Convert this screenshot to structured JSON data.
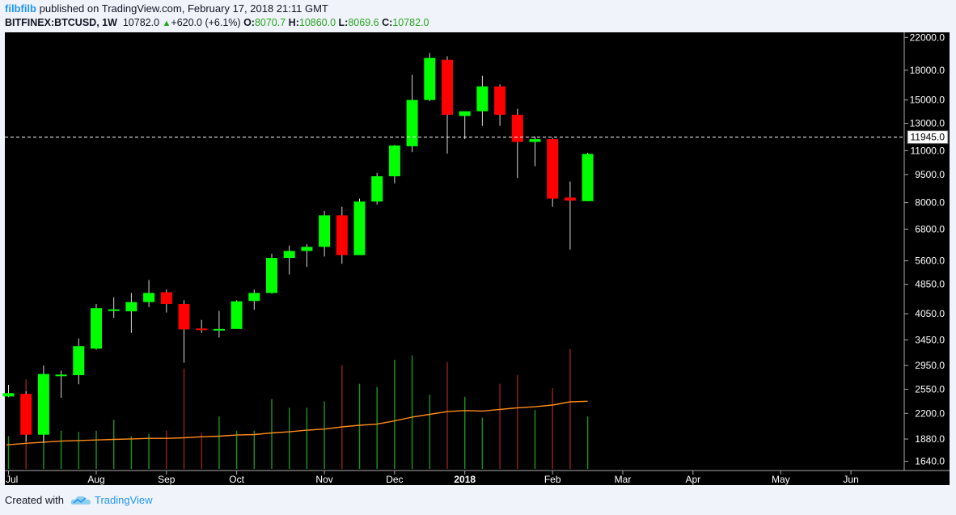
{
  "header": {
    "user": "filbfilb",
    "published_text": "published on TradingView.com, February 17, 2018 21:11 GMT",
    "symbol": "BITFINEX:BTCUSD, 1W",
    "last": "10782.0",
    "change": "+620.0 (+6.1%)",
    "o_label": "O:",
    "o_value": "8070.7",
    "h_label": "H:",
    "h_value": "10860.0",
    "l_label": "L:",
    "l_value": "8069.6",
    "c_label": "C:",
    "c_value": "10782.0"
  },
  "footer": {
    "created_with": "Created with",
    "brand": "TradingView"
  },
  "colors": {
    "up": "#00ff00",
    "down": "#ff0000",
    "background": "#000000",
    "ma": "#ff8c1a",
    "vol_up": "#1e8c1e",
    "vol_down": "#8c1e1e",
    "accent": "#2196f3"
  },
  "chart_data": {
    "type": "candlestick",
    "scale": "log",
    "ylim": [
      1550,
      22700
    ],
    "y_ticks": [
      22000.0,
      18000.0,
      15000.0,
      13000.0,
      11000.0,
      9500.0,
      8000.0,
      6800.0,
      5600.0,
      4850.0,
      4050.0,
      3450.0,
      2950.0,
      2550.0,
      2200.0,
      1880.0,
      1640.0
    ],
    "y_tick_labels": [
      "22000.0",
      "18000.0",
      "15000.0",
      "13000.0",
      "11000.0",
      "9500.0",
      "8000.0",
      "6800.0",
      "5600.0",
      "4850.0",
      "4050.0",
      "3450.0",
      "2950.0",
      "2550.0",
      "2200.0",
      "1880.0",
      "1640.0"
    ],
    "price_line": {
      "value": 11945.0,
      "label": "11945.0",
      "style": "dashed"
    },
    "x_labels": [
      {
        "label": "Jul",
        "week": 0
      },
      {
        "label": "Aug",
        "week": 5
      },
      {
        "label": "Sep",
        "week": 9
      },
      {
        "label": "Oct",
        "week": 13
      },
      {
        "label": "Nov",
        "week": 18
      },
      {
        "label": "Dec",
        "week": 22
      },
      {
        "label": "2018",
        "week": 26,
        "bold": true
      },
      {
        "label": "Feb",
        "week": 31
      },
      {
        "label": "Mar",
        "week": 35
      },
      {
        "label": "Apr",
        "week": 39
      },
      {
        "label": "May",
        "week": 44
      },
      {
        "label": "Jun",
        "week": 48
      }
    ],
    "candles": [
      {
        "o": 2440,
        "h": 2620,
        "l": 2430,
        "c": 2490,
        "v": 0.3
      },
      {
        "o": 2480,
        "h": 2520,
        "l": 1850,
        "c": 1930,
        "v": 0.82
      },
      {
        "o": 1930,
        "h": 2950,
        "l": 1840,
        "c": 2800,
        "v": 0.75
      },
      {
        "o": 2770,
        "h": 2860,
        "l": 2420,
        "c": 2790,
        "v": 0.35
      },
      {
        "o": 2780,
        "h": 3480,
        "l": 2630,
        "c": 3320,
        "v": 0.34
      },
      {
        "o": 3270,
        "h": 4300,
        "l": 3250,
        "c": 4190,
        "v": 0.35
      },
      {
        "o": 4150,
        "h": 4480,
        "l": 3950,
        "c": 4160,
        "v": 0.45
      },
      {
        "o": 4110,
        "h": 4600,
        "l": 3600,
        "c": 4350,
        "v": 0.3
      },
      {
        "o": 4350,
        "h": 4980,
        "l": 4220,
        "c": 4600,
        "v": 0.32
      },
      {
        "o": 4620,
        "h": 4700,
        "l": 4080,
        "c": 4300,
        "v": 0.35
      },
      {
        "o": 4300,
        "h": 4400,
        "l": 3000,
        "c": 3680,
        "v": 0.92
      },
      {
        "o": 3700,
        "h": 3900,
        "l": 3600,
        "c": 3680,
        "v": 0.33
      },
      {
        "o": 3690,
        "h": 4120,
        "l": 3500,
        "c": 3690,
        "v": 0.48
      },
      {
        "o": 3690,
        "h": 4400,
        "l": 3700,
        "c": 4370,
        "v": 0.35
      },
      {
        "o": 4380,
        "h": 4700,
        "l": 4150,
        "c": 4600,
        "v": 0.35
      },
      {
        "o": 4600,
        "h": 5850,
        "l": 4580,
        "c": 5700,
        "v": 0.64
      },
      {
        "o": 5700,
        "h": 6150,
        "l": 5150,
        "c": 5950,
        "v": 0.56
      },
      {
        "o": 5950,
        "h": 6200,
        "l": 5400,
        "c": 6100,
        "v": 0.56
      },
      {
        "o": 6100,
        "h": 7600,
        "l": 5750,
        "c": 7400,
        "v": 0.62
      },
      {
        "o": 7400,
        "h": 7800,
        "l": 5500,
        "c": 5800,
        "v": 0.95
      },
      {
        "o": 5800,
        "h": 8200,
        "l": 5800,
        "c": 8050,
        "v": 0.78
      },
      {
        "o": 8050,
        "h": 9600,
        "l": 7900,
        "c": 9400,
        "v": 0.75
      },
      {
        "o": 9400,
        "h": 11400,
        "l": 9000,
        "c": 11350,
        "v": 1.0
      },
      {
        "o": 11300,
        "h": 17500,
        "l": 10900,
        "c": 15000,
        "v": 1.04
      },
      {
        "o": 15000,
        "h": 20000,
        "l": 14900,
        "c": 19400,
        "v": 0.68
      },
      {
        "o": 19200,
        "h": 19600,
        "l": 10800,
        "c": 13700,
        "v": 0.98
      },
      {
        "o": 13600,
        "h": 14000,
        "l": 11800,
        "c": 14000,
        "v": 0.66
      },
      {
        "o": 14000,
        "h": 17400,
        "l": 12800,
        "c": 16300,
        "v": 0.47
      },
      {
        "o": 16300,
        "h": 16500,
        "l": 12800,
        "c": 13700,
        "v": 0.78
      },
      {
        "o": 13700,
        "h": 14200,
        "l": 9300,
        "c": 11600,
        "v": 0.86
      },
      {
        "o": 11600,
        "h": 12000,
        "l": 10000,
        "c": 11800,
        "v": 0.54
      },
      {
        "o": 11800,
        "h": 11900,
        "l": 7800,
        "c": 8200,
        "v": 0.74
      },
      {
        "o": 8250,
        "h": 9100,
        "l": 6000,
        "c": 8100,
        "v": 1.1
      },
      {
        "o": 8070.7,
        "h": 10860.0,
        "l": 8069.6,
        "c": 10782.0,
        "v": 0.48
      }
    ],
    "volume_ma": [
      0.22,
      0.235,
      0.245,
      0.255,
      0.26,
      0.265,
      0.27,
      0.275,
      0.28,
      0.28,
      0.285,
      0.295,
      0.3,
      0.31,
      0.315,
      0.33,
      0.34,
      0.355,
      0.365,
      0.385,
      0.4,
      0.41,
      0.44,
      0.475,
      0.5,
      0.525,
      0.535,
      0.53,
      0.545,
      0.56,
      0.57,
      0.585,
      0.615,
      0.62
    ]
  }
}
